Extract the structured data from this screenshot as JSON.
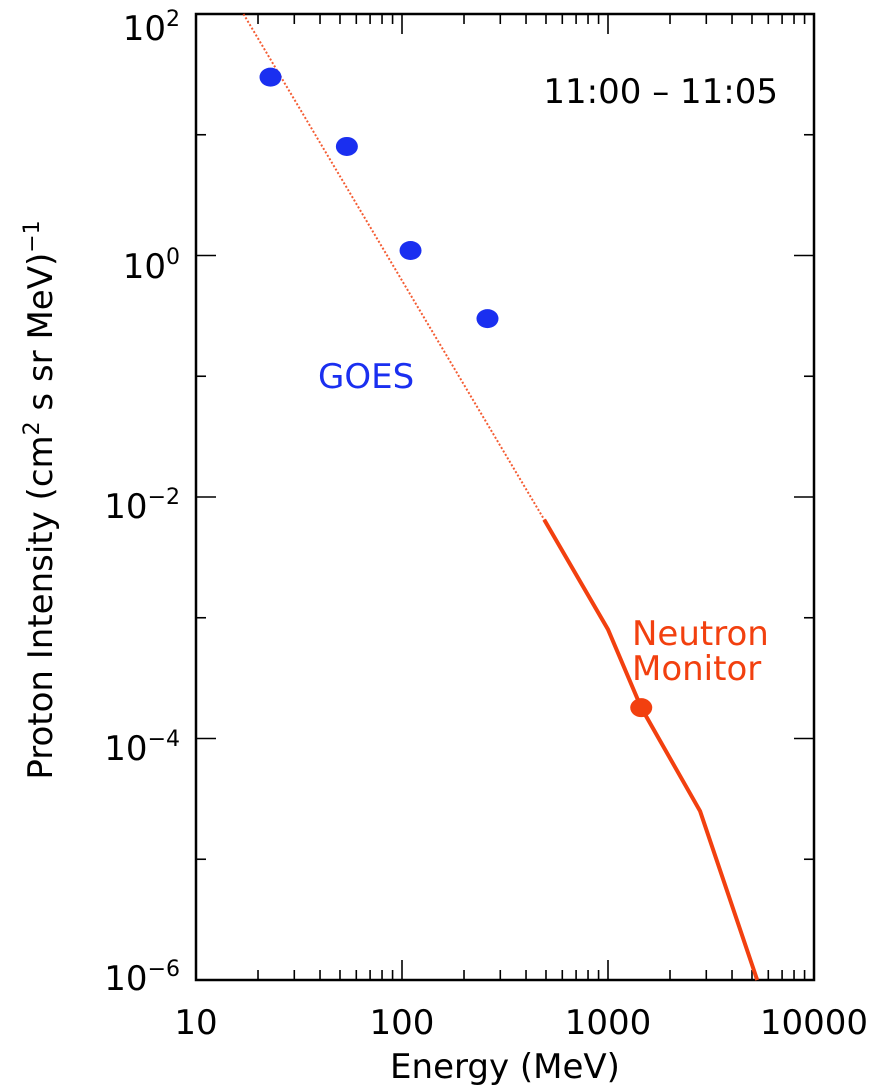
{
  "chart_data": {
    "type": "scatter",
    "x_scale": "log",
    "y_scale": "log",
    "xlim": [
      10,
      10000
    ],
    "ylim": [
      1e-06,
      100
    ],
    "xlabel": "Energy (MeV)",
    "ylabel_parts": {
      "main": "Proton Intensity (cm",
      "sup1": "2",
      "mid": " s sr MeV)",
      "sup2": "−1"
    },
    "x_ticks": [
      {
        "value": 10,
        "label": "10"
      },
      {
        "value": 100,
        "label": "100"
      },
      {
        "value": 1000,
        "label": "1000"
      },
      {
        "value": 10000,
        "label": "10000"
      }
    ],
    "y_ticks": [
      {
        "value": 100,
        "base": "10",
        "exp": "2"
      },
      {
        "value": 1,
        "base": "10",
        "exp": "0"
      },
      {
        "value": 0.01,
        "base": "10",
        "exp": "−2"
      },
      {
        "value": 0.0001,
        "base": "10",
        "exp": "−4"
      },
      {
        "value": 1e-06,
        "base": "10",
        "exp": "−6"
      }
    ],
    "time_label": "11:00 – 11:05",
    "series": [
      {
        "name": "GOES",
        "color": "#1a2ff0",
        "points": [
          {
            "x": 23,
            "y": 30
          },
          {
            "x": 54,
            "y": 8
          },
          {
            "x": 110,
            "y": 1.1
          },
          {
            "x": 260,
            "y": 0.3
          }
        ]
      },
      {
        "name_line1": "Neutron",
        "name_line2": "Monitor",
        "color": "#f2400f",
        "fit_dashed": [
          [
            17,
            100
          ],
          [
            490,
            0.0065
          ]
        ],
        "fit_solid": [
          [
            490,
            0.0065
          ],
          [
            1000,
            0.0008
          ],
          [
            1450,
            0.00018
          ],
          [
            2800,
            2.5e-05
          ],
          [
            5300,
            1e-06
          ]
        ],
        "points": [
          {
            "x": 1450,
            "y": 0.00018
          }
        ]
      }
    ]
  }
}
